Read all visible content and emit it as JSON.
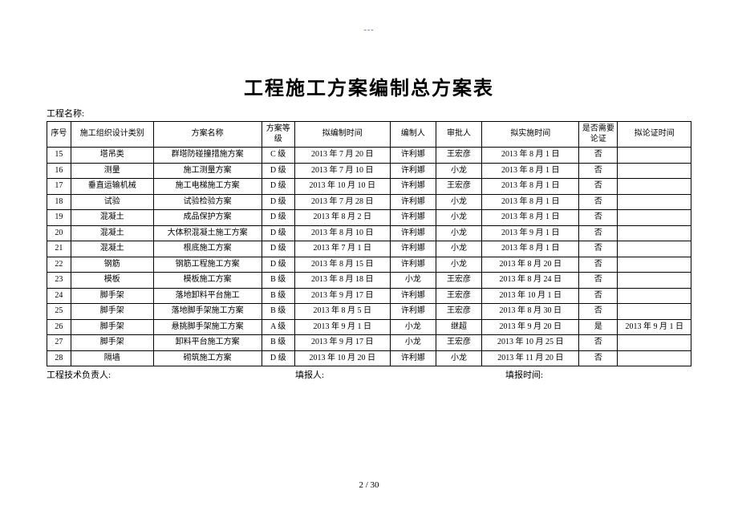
{
  "header_mark": "---",
  "title": "工程施工方案编制总方案表",
  "project_label": "工程名称:",
  "columns": [
    "序号",
    "施工组织设计类别",
    "方案名称",
    "方案等级",
    "拟编制时间",
    "编制人",
    "审批人",
    "拟实施时间",
    "是否需要论证",
    "拟论证时间"
  ],
  "rows": [
    {
      "c0": "15",
      "c1": "塔吊类",
      "c2": "群塔防碰撞措施方案",
      "c3": "C 级",
      "c4": "2013 年 7 月 20 日",
      "c5": "许利娜",
      "c6": "王宏彦",
      "c7": "2013 年 8 月 1 日",
      "c8": "否",
      "c9": ""
    },
    {
      "c0": "16",
      "c1": "测量",
      "c2": "施工测量方案",
      "c3": "D 级",
      "c4": "2013 年 7 月 10 日",
      "c5": "许利娜",
      "c6": "小龙",
      "c7": "2013 年 8 月 1 日",
      "c8": "否",
      "c9": ""
    },
    {
      "c0": "17",
      "c1": "垂直运输机械",
      "c2": "施工电梯施工方案",
      "c3": "D 级",
      "c4": "2013 年 10 月 10 日",
      "c5": "许利娜",
      "c6": "王宏彦",
      "c7": "2013 年 8 月 1 日",
      "c8": "否",
      "c9": ""
    },
    {
      "c0": "18",
      "c1": "试验",
      "c2": "试验检验方案",
      "c3": "D 级",
      "c4": "2013 年 7 月 28 日",
      "c5": "许利娜",
      "c6": "小龙",
      "c7": "2013 年 8 月 1 日",
      "c8": "否",
      "c9": ""
    },
    {
      "c0": "19",
      "c1": "混凝土",
      "c2": "成品保护方案",
      "c3": "D 级",
      "c4": "2013 年 8 月 2 日",
      "c5": "许利娜",
      "c6": "小龙",
      "c7": "2013 年 8 月 1 日",
      "c8": "否",
      "c9": ""
    },
    {
      "c0": "20",
      "c1": "混凝土",
      "c2": "大体积混凝土施工方案",
      "c3": "D 级",
      "c4": "2013 年 8 月 10 日",
      "c5": "许利娜",
      "c6": "小龙",
      "c7": "2013 年 9 月 1 日",
      "c8": "否",
      "c9": ""
    },
    {
      "c0": "21",
      "c1": "混凝土",
      "c2": "根底施工方案",
      "c3": "D 级",
      "c4": "2013 年 7 月 1 日",
      "c5": "许利娜",
      "c6": "小龙",
      "c7": "2013 年 8 月 1 日",
      "c8": "否",
      "c9": ""
    },
    {
      "c0": "22",
      "c1": "钢筋",
      "c2": "钢筋工程施工方案",
      "c3": "D 级",
      "c4": "2013 年 8 月 15 日",
      "c5": "许利娜",
      "c6": "小龙",
      "c7": "2013 年 8 月 20 日",
      "c8": "否",
      "c9": ""
    },
    {
      "c0": "23",
      "c1": "模板",
      "c2": "模板施工方案",
      "c3": "B 级",
      "c4": "2013 年 8 月 18 日",
      "c5": "小龙",
      "c6": "王宏彦",
      "c7": "2013 年 8 月 24 日",
      "c8": "否",
      "c9": ""
    },
    {
      "c0": "24",
      "c1": "脚手架",
      "c2": "落地卸料平台施工",
      "c3": "B 级",
      "c4": "2013 年 9 月 17 日",
      "c5": "许利娜",
      "c6": "王宏彦",
      "c7": "2013 年 10 月 1 日",
      "c8": "否",
      "c9": ""
    },
    {
      "c0": "25",
      "c1": "脚手架",
      "c2": "落地脚手架施工方案",
      "c3": "B 级",
      "c4": "2013 年 8 月 5 日",
      "c5": "许利娜",
      "c6": "王宏彦",
      "c7": "2013 年 8 月 30 日",
      "c8": "否",
      "c9": ""
    },
    {
      "c0": "26",
      "c1": "脚手架",
      "c2": "悬挑脚手架施工方案",
      "c3": "A 级",
      "c4": "2013 年 9 月 1 日",
      "c5": "小龙",
      "c6": "继超",
      "c7": "2013 年 9 月 20 日",
      "c8": "是",
      "c9": "2013 年 9 月 1 日"
    },
    {
      "c0": "27",
      "c1": "脚手架",
      "c2": "卸料平台施工方案",
      "c3": "B 级",
      "c4": "2013 年 9 月 17 日",
      "c5": "小龙",
      "c6": "王宏彦",
      "c7": "2013 年 10 月 25 日",
      "c8": "否",
      "c9": ""
    },
    {
      "c0": "28",
      "c1": "隔墙",
      "c2": "砌筑施工方案",
      "c3": "D 级",
      "c4": "2013 年 10 月 20 日",
      "c5": "许利娜",
      "c6": "小龙",
      "c7": "2013 年 11 月 20 日",
      "c8": "否",
      "c9": ""
    }
  ],
  "footer": {
    "tech_leader": "工程技术负责人:",
    "reporter": "填报人:",
    "report_time": "填报时间:"
  },
  "page_number": "2 / 30"
}
